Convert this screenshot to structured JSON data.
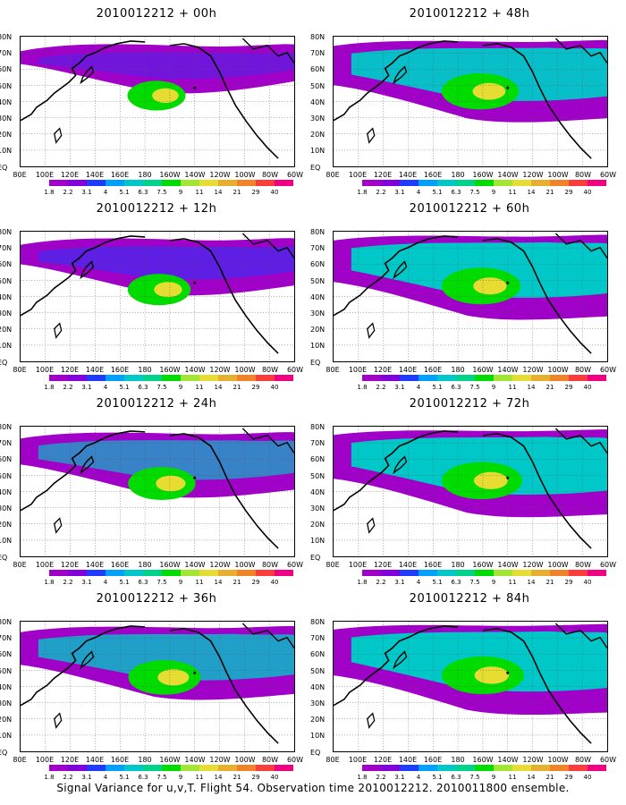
{
  "panels": [
    {
      "title": "2010012212 + 00h",
      "intensity": 0.15
    },
    {
      "title": "2010012212 + 48h",
      "intensity": 0.75
    },
    {
      "title": "2010012212 + 12h",
      "intensity": 0.3
    },
    {
      "title": "2010012212 + 60h",
      "intensity": 0.8
    },
    {
      "title": "2010012212 + 24h",
      "intensity": 0.45
    },
    {
      "title": "2010012212 + 72h",
      "intensity": 0.85
    },
    {
      "title": "2010012212 + 36h",
      "intensity": 0.6
    },
    {
      "title": "2010012212 + 84h",
      "intensity": 0.9
    }
  ],
  "lat_labels": [
    "80N",
    "70N",
    "60N",
    "50N",
    "40N",
    "30N",
    "20N",
    "10N",
    "EQ"
  ],
  "lon_labels": [
    "80E",
    "100E",
    "120E",
    "140E",
    "160E",
    "180",
    "160W",
    "140W",
    "120W",
    "100W",
    "80W",
    "60W"
  ],
  "colorbar": {
    "labels": [
      "1.8",
      "2.2",
      "3.1",
      "4",
      "5.1",
      "6.3",
      "7.5",
      "9",
      "11",
      "14",
      "21",
      "29",
      "40"
    ],
    "colors": [
      "#a000c8",
      "#8200dc",
      "#1e3cff",
      "#00a0ff",
      "#00c8c8",
      "#00d28c",
      "#00dc00",
      "#a0e632",
      "#e6dc32",
      "#e6af2d",
      "#f08228",
      "#fa3c3c",
      "#f00082"
    ]
  },
  "caption": "Signal Variance for u,v,T. Flight 54. Observation time 2010012212. 2010011800 ensemble."
}
